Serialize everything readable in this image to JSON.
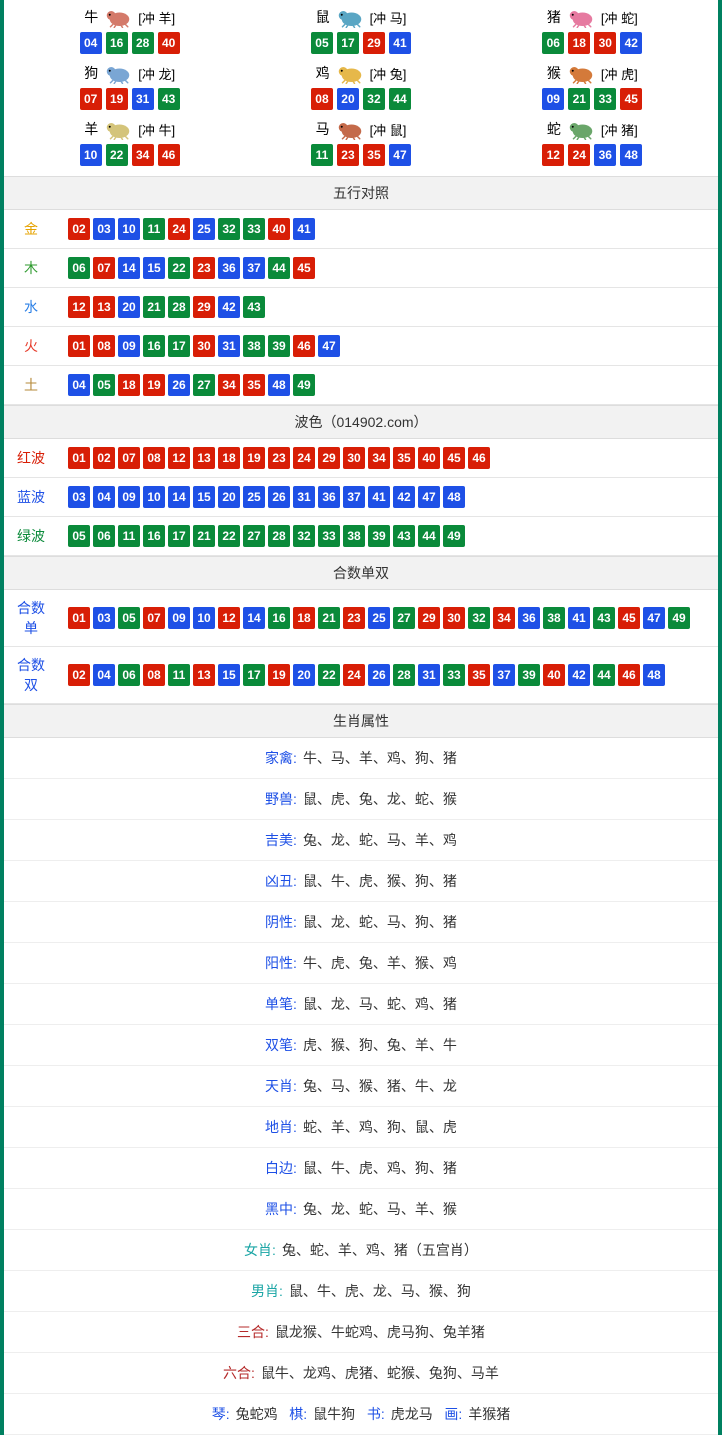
{
  "colors": {
    "red": "#d81e06",
    "blue": "#1e50e6",
    "green": "#0a8a3a",
    "border": "#008060"
  },
  "zodiac": [
    {
      "name": "牛",
      "clash": "[冲 羊]",
      "icon_color": "#d47a6a",
      "balls": [
        {
          "n": "04",
          "c": "blue"
        },
        {
          "n": "16",
          "c": "green"
        },
        {
          "n": "28",
          "c": "green"
        },
        {
          "n": "40",
          "c": "red"
        }
      ]
    },
    {
      "name": "鼠",
      "clash": "[冲 马]",
      "icon_color": "#5aa6c4",
      "balls": [
        {
          "n": "05",
          "c": "green"
        },
        {
          "n": "17",
          "c": "green"
        },
        {
          "n": "29",
          "c": "red"
        },
        {
          "n": "41",
          "c": "blue"
        }
      ]
    },
    {
      "name": "猪",
      "clash": "[冲 蛇]",
      "icon_color": "#e67aa0",
      "balls": [
        {
          "n": "06",
          "c": "green"
        },
        {
          "n": "18",
          "c": "red"
        },
        {
          "n": "30",
          "c": "red"
        },
        {
          "n": "42",
          "c": "blue"
        }
      ]
    },
    {
      "name": "狗",
      "clash": "[冲 龙]",
      "icon_color": "#7aa6d4",
      "balls": [
        {
          "n": "07",
          "c": "red"
        },
        {
          "n": "19",
          "c": "red"
        },
        {
          "n": "31",
          "c": "blue"
        },
        {
          "n": "43",
          "c": "green"
        }
      ]
    },
    {
      "name": "鸡",
      "clash": "[冲 兔]",
      "icon_color": "#e6b84a",
      "balls": [
        {
          "n": "08",
          "c": "red"
        },
        {
          "n": "20",
          "c": "blue"
        },
        {
          "n": "32",
          "c": "green"
        },
        {
          "n": "44",
          "c": "green"
        }
      ]
    },
    {
      "name": "猴",
      "clash": "[冲 虎]",
      "icon_color": "#d47a3a",
      "balls": [
        {
          "n": "09",
          "c": "blue"
        },
        {
          "n": "21",
          "c": "green"
        },
        {
          "n": "33",
          "c": "green"
        },
        {
          "n": "45",
          "c": "red"
        }
      ]
    },
    {
      "name": "羊",
      "clash": "[冲 牛]",
      "icon_color": "#d4c47a",
      "balls": [
        {
          "n": "10",
          "c": "blue"
        },
        {
          "n": "22",
          "c": "green"
        },
        {
          "n": "34",
          "c": "red"
        },
        {
          "n": "46",
          "c": "red"
        }
      ]
    },
    {
      "name": "马",
      "clash": "[冲 鼠]",
      "icon_color": "#c46a4a",
      "balls": [
        {
          "n": "11",
          "c": "green"
        },
        {
          "n": "23",
          "c": "red"
        },
        {
          "n": "35",
          "c": "red"
        },
        {
          "n": "47",
          "c": "blue"
        }
      ]
    },
    {
      "name": "蛇",
      "clash": "[冲 猪]",
      "icon_color": "#6aa66a",
      "balls": [
        {
          "n": "12",
          "c": "red"
        },
        {
          "n": "24",
          "c": "red"
        },
        {
          "n": "36",
          "c": "blue"
        },
        {
          "n": "48",
          "c": "blue"
        }
      ]
    }
  ],
  "sections": {
    "five_elements_title": "五行对照",
    "wave_title": "波色（014902.com）",
    "sum_parity_title": "合数单双",
    "zodiac_attr_title": "生肖属性"
  },
  "five_elements": [
    {
      "label": "金",
      "label_class": "lbl-gold",
      "balls": [
        {
          "n": "02",
          "c": "red"
        },
        {
          "n": "03",
          "c": "blue"
        },
        {
          "n": "10",
          "c": "blue"
        },
        {
          "n": "11",
          "c": "green"
        },
        {
          "n": "24",
          "c": "red"
        },
        {
          "n": "25",
          "c": "blue"
        },
        {
          "n": "32",
          "c": "green"
        },
        {
          "n": "33",
          "c": "green"
        },
        {
          "n": "40",
          "c": "red"
        },
        {
          "n": "41",
          "c": "blue"
        }
      ]
    },
    {
      "label": "木",
      "label_class": "lbl-wood",
      "balls": [
        {
          "n": "06",
          "c": "green"
        },
        {
          "n": "07",
          "c": "red"
        },
        {
          "n": "14",
          "c": "blue"
        },
        {
          "n": "15",
          "c": "blue"
        },
        {
          "n": "22",
          "c": "green"
        },
        {
          "n": "23",
          "c": "red"
        },
        {
          "n": "36",
          "c": "blue"
        },
        {
          "n": "37",
          "c": "blue"
        },
        {
          "n": "44",
          "c": "green"
        },
        {
          "n": "45",
          "c": "red"
        }
      ]
    },
    {
      "label": "水",
      "label_class": "lbl-water",
      "balls": [
        {
          "n": "12",
          "c": "red"
        },
        {
          "n": "13",
          "c": "red"
        },
        {
          "n": "20",
          "c": "blue"
        },
        {
          "n": "21",
          "c": "green"
        },
        {
          "n": "28",
          "c": "green"
        },
        {
          "n": "29",
          "c": "red"
        },
        {
          "n": "42",
          "c": "blue"
        },
        {
          "n": "43",
          "c": "green"
        }
      ]
    },
    {
      "label": "火",
      "label_class": "lbl-fire",
      "balls": [
        {
          "n": "01",
          "c": "red"
        },
        {
          "n": "08",
          "c": "red"
        },
        {
          "n": "09",
          "c": "blue"
        },
        {
          "n": "16",
          "c": "green"
        },
        {
          "n": "17",
          "c": "green"
        },
        {
          "n": "30",
          "c": "red"
        },
        {
          "n": "31",
          "c": "blue"
        },
        {
          "n": "38",
          "c": "green"
        },
        {
          "n": "39",
          "c": "green"
        },
        {
          "n": "46",
          "c": "red"
        },
        {
          "n": "47",
          "c": "blue"
        }
      ]
    },
    {
      "label": "土",
      "label_class": "lbl-earth",
      "balls": [
        {
          "n": "04",
          "c": "blue"
        },
        {
          "n": "05",
          "c": "green"
        },
        {
          "n": "18",
          "c": "red"
        },
        {
          "n": "19",
          "c": "red"
        },
        {
          "n": "26",
          "c": "blue"
        },
        {
          "n": "27",
          "c": "green"
        },
        {
          "n": "34",
          "c": "red"
        },
        {
          "n": "35",
          "c": "red"
        },
        {
          "n": "48",
          "c": "blue"
        },
        {
          "n": "49",
          "c": "green"
        }
      ]
    }
  ],
  "wave": [
    {
      "label": "红波",
      "label_class": "lbl-red",
      "balls": [
        {
          "n": "01",
          "c": "red"
        },
        {
          "n": "02",
          "c": "red"
        },
        {
          "n": "07",
          "c": "red"
        },
        {
          "n": "08",
          "c": "red"
        },
        {
          "n": "12",
          "c": "red"
        },
        {
          "n": "13",
          "c": "red"
        },
        {
          "n": "18",
          "c": "red"
        },
        {
          "n": "19",
          "c": "red"
        },
        {
          "n": "23",
          "c": "red"
        },
        {
          "n": "24",
          "c": "red"
        },
        {
          "n": "29",
          "c": "red"
        },
        {
          "n": "30",
          "c": "red"
        },
        {
          "n": "34",
          "c": "red"
        },
        {
          "n": "35",
          "c": "red"
        },
        {
          "n": "40",
          "c": "red"
        },
        {
          "n": "45",
          "c": "red"
        },
        {
          "n": "46",
          "c": "red"
        }
      ]
    },
    {
      "label": "蓝波",
      "label_class": "lbl-blue",
      "balls": [
        {
          "n": "03",
          "c": "blue"
        },
        {
          "n": "04",
          "c": "blue"
        },
        {
          "n": "09",
          "c": "blue"
        },
        {
          "n": "10",
          "c": "blue"
        },
        {
          "n": "14",
          "c": "blue"
        },
        {
          "n": "15",
          "c": "blue"
        },
        {
          "n": "20",
          "c": "blue"
        },
        {
          "n": "25",
          "c": "blue"
        },
        {
          "n": "26",
          "c": "blue"
        },
        {
          "n": "31",
          "c": "blue"
        },
        {
          "n": "36",
          "c": "blue"
        },
        {
          "n": "37",
          "c": "blue"
        },
        {
          "n": "41",
          "c": "blue"
        },
        {
          "n": "42",
          "c": "blue"
        },
        {
          "n": "47",
          "c": "blue"
        },
        {
          "n": "48",
          "c": "blue"
        }
      ]
    },
    {
      "label": "绿波",
      "label_class": "lbl-green",
      "balls": [
        {
          "n": "05",
          "c": "green"
        },
        {
          "n": "06",
          "c": "green"
        },
        {
          "n": "11",
          "c": "green"
        },
        {
          "n": "16",
          "c": "green"
        },
        {
          "n": "17",
          "c": "green"
        },
        {
          "n": "21",
          "c": "green"
        },
        {
          "n": "22",
          "c": "green"
        },
        {
          "n": "27",
          "c": "green"
        },
        {
          "n": "28",
          "c": "green"
        },
        {
          "n": "32",
          "c": "green"
        },
        {
          "n": "33",
          "c": "green"
        },
        {
          "n": "38",
          "c": "green"
        },
        {
          "n": "39",
          "c": "green"
        },
        {
          "n": "43",
          "c": "green"
        },
        {
          "n": "44",
          "c": "green"
        },
        {
          "n": "49",
          "c": "green"
        }
      ]
    }
  ],
  "sum_parity": [
    {
      "label": "合数单",
      "label_class": "lbl-navy",
      "balls": [
        {
          "n": "01",
          "c": "red"
        },
        {
          "n": "03",
          "c": "blue"
        },
        {
          "n": "05",
          "c": "green"
        },
        {
          "n": "07",
          "c": "red"
        },
        {
          "n": "09",
          "c": "blue"
        },
        {
          "n": "10",
          "c": "blue"
        },
        {
          "n": "12",
          "c": "red"
        },
        {
          "n": "14",
          "c": "blue"
        },
        {
          "n": "16",
          "c": "green"
        },
        {
          "n": "18",
          "c": "red"
        },
        {
          "n": "21",
          "c": "green"
        },
        {
          "n": "23",
          "c": "red"
        },
        {
          "n": "25",
          "c": "blue"
        },
        {
          "n": "27",
          "c": "green"
        },
        {
          "n": "29",
          "c": "red"
        },
        {
          "n": "30",
          "c": "red"
        },
        {
          "n": "32",
          "c": "green"
        },
        {
          "n": "34",
          "c": "red"
        },
        {
          "n": "36",
          "c": "blue"
        },
        {
          "n": "38",
          "c": "green"
        },
        {
          "n": "41",
          "c": "blue"
        },
        {
          "n": "43",
          "c": "green"
        },
        {
          "n": "45",
          "c": "red"
        },
        {
          "n": "47",
          "c": "blue"
        },
        {
          "n": "49",
          "c": "green"
        }
      ]
    },
    {
      "label": "合数双",
      "label_class": "lbl-navy",
      "balls": [
        {
          "n": "02",
          "c": "red"
        },
        {
          "n": "04",
          "c": "blue"
        },
        {
          "n": "06",
          "c": "green"
        },
        {
          "n": "08",
          "c": "red"
        },
        {
          "n": "11",
          "c": "green"
        },
        {
          "n": "13",
          "c": "red"
        },
        {
          "n": "15",
          "c": "blue"
        },
        {
          "n": "17",
          "c": "green"
        },
        {
          "n": "19",
          "c": "red"
        },
        {
          "n": "20",
          "c": "blue"
        },
        {
          "n": "22",
          "c": "green"
        },
        {
          "n": "24",
          "c": "red"
        },
        {
          "n": "26",
          "c": "blue"
        },
        {
          "n": "28",
          "c": "green"
        },
        {
          "n": "31",
          "c": "blue"
        },
        {
          "n": "33",
          "c": "green"
        },
        {
          "n": "35",
          "c": "red"
        },
        {
          "n": "37",
          "c": "blue"
        },
        {
          "n": "39",
          "c": "green"
        },
        {
          "n": "40",
          "c": "red"
        },
        {
          "n": "42",
          "c": "blue"
        },
        {
          "n": "44",
          "c": "green"
        },
        {
          "n": "46",
          "c": "red"
        },
        {
          "n": "48",
          "c": "blue"
        }
      ]
    }
  ],
  "zodiac_attrs": [
    {
      "label": "家禽:",
      "label_class": "lbl-navy",
      "value": "牛、马、羊、鸡、狗、猪"
    },
    {
      "label": "野兽:",
      "label_class": "lbl-navy",
      "value": "鼠、虎、兔、龙、蛇、猴"
    },
    {
      "label": "吉美:",
      "label_class": "lbl-navy",
      "value": "兔、龙、蛇、马、羊、鸡"
    },
    {
      "label": "凶丑:",
      "label_class": "lbl-navy",
      "value": "鼠、牛、虎、猴、狗、猪"
    },
    {
      "label": "阴性:",
      "label_class": "lbl-navy",
      "value": "鼠、龙、蛇、马、狗、猪"
    },
    {
      "label": "阳性:",
      "label_class": "lbl-navy",
      "value": "牛、虎、兔、羊、猴、鸡"
    },
    {
      "label": "单笔:",
      "label_class": "lbl-navy",
      "value": "鼠、龙、马、蛇、鸡、猪"
    },
    {
      "label": "双笔:",
      "label_class": "lbl-navy",
      "value": "虎、猴、狗、兔、羊、牛"
    },
    {
      "label": "天肖:",
      "label_class": "lbl-navy",
      "value": "兔、马、猴、猪、牛、龙"
    },
    {
      "label": "地肖:",
      "label_class": "lbl-navy",
      "value": "蛇、羊、鸡、狗、鼠、虎"
    },
    {
      "label": "白边:",
      "label_class": "lbl-navy",
      "value": "鼠、牛、虎、鸡、狗、猪"
    },
    {
      "label": "黑中:",
      "label_class": "lbl-navy",
      "value": "兔、龙、蛇、马、羊、猴"
    },
    {
      "label": "女肖:",
      "label_class": "lbl-teal",
      "value": "兔、蛇、羊、鸡、猪（五宫肖）"
    },
    {
      "label": "男肖:",
      "label_class": "lbl-teal",
      "value": "鼠、牛、虎、龙、马、猴、狗"
    },
    {
      "label": "三合:",
      "label_class": "lbl-dkred",
      "value": "鼠龙猴、牛蛇鸡、虎马狗、兔羊猪"
    },
    {
      "label": "六合:",
      "label_class": "lbl-dkred",
      "value": "鼠牛、龙鸡、虎猪、蛇猴、兔狗、马羊"
    }
  ],
  "bottom_row": [
    {
      "label": "琴:",
      "value": "兔蛇鸡"
    },
    {
      "label": "棋:",
      "value": "鼠牛狗"
    },
    {
      "label": "书:",
      "value": "虎龙马"
    },
    {
      "label": "画:",
      "value": "羊猴猪"
    }
  ]
}
